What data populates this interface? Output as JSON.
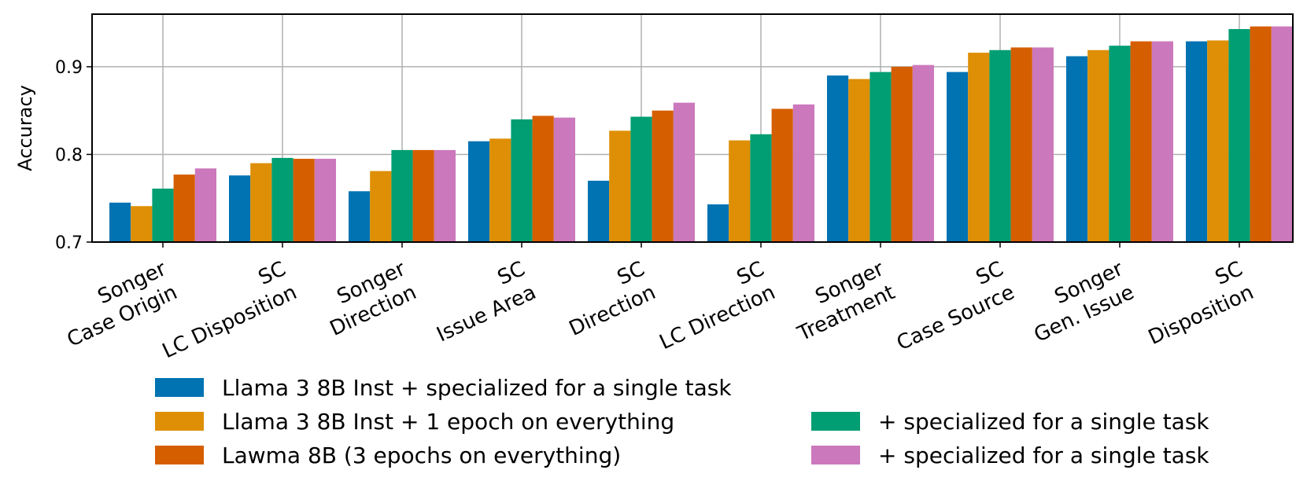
{
  "chart_data": {
    "type": "bar",
    "title": "",
    "xlabel": "",
    "ylabel": "Accuracy",
    "ylim": [
      0.7,
      0.96
    ],
    "yticks": [
      "0.7",
      "0.8",
      "0.9"
    ],
    "ytick_values": [
      0.7,
      0.8,
      0.9
    ],
    "grid": true,
    "legend_position": "below",
    "categories": [
      [
        "Songer",
        "Case Origin"
      ],
      [
        "SC",
        "LC Disposition"
      ],
      [
        "Songer",
        "Direction"
      ],
      [
        "SC",
        "Issue Area"
      ],
      [
        "SC",
        "Direction"
      ],
      [
        "SC",
        "LC Direction"
      ],
      [
        "Songer",
        "Treatment"
      ],
      [
        "SC",
        "Case Source"
      ],
      [
        "Songer",
        "Gen. Issue"
      ],
      [
        "SC",
        "Disposition"
      ]
    ],
    "series": [
      {
        "name": "Llama 3 8B Inst + specialized for a single task",
        "color": "#0173b2",
        "values": [
          0.745,
          0.776,
          0.758,
          0.815,
          0.77,
          0.743,
          0.89,
          0.894,
          0.912,
          0.929
        ]
      },
      {
        "name": "Llama 3 8B Inst + 1 epoch on everything",
        "color": "#de8f05",
        "values": [
          0.741,
          0.79,
          0.781,
          0.818,
          0.827,
          0.816,
          0.886,
          0.916,
          0.919,
          0.93
        ]
      },
      {
        "name": "+ specialized for a single task",
        "color": "#029e73",
        "values": [
          0.761,
          0.796,
          0.805,
          0.84,
          0.843,
          0.823,
          0.894,
          0.919,
          0.924,
          0.943
        ]
      },
      {
        "name": "Lawma 8B (3 epochs on everything)",
        "color": "#d55e00",
        "values": [
          0.777,
          0.795,
          0.805,
          0.844,
          0.85,
          0.852,
          0.9,
          0.922,
          0.929,
          0.946
        ]
      },
      {
        "name": "+ specialized for a single task",
        "color": "#cc78bc",
        "values": [
          0.784,
          0.795,
          0.805,
          0.842,
          0.859,
          0.857,
          0.902,
          0.922,
          0.929,
          0.946
        ]
      }
    ],
    "legend_order": [
      0,
      1,
      3,
      2,
      4
    ]
  }
}
